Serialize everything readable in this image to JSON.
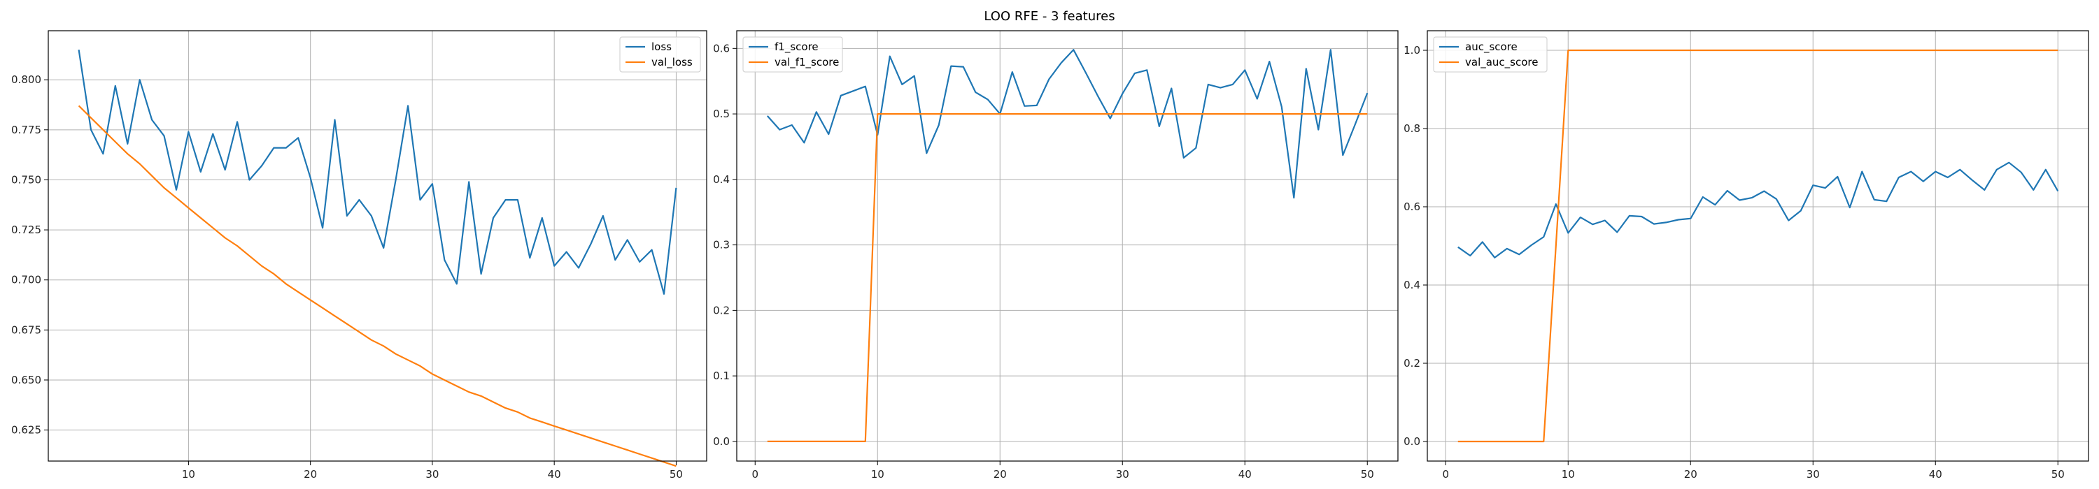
{
  "figure": {
    "title": "LOO RFE - 3 features"
  },
  "colors": {
    "series_blue": "#1f77b4",
    "series_orange": "#ff7f0e",
    "grid": "#b0b0b0",
    "axes": "#000000"
  },
  "chart_data": [
    {
      "type": "line",
      "title": "",
      "xlabel": "",
      "ylabel": "",
      "grid": true,
      "legend": "top-right",
      "xlim": [
        -1.5,
        52.5
      ],
      "ylim": [
        0.6095,
        0.8245
      ],
      "xticks": [
        10,
        20,
        30,
        40,
        50
      ],
      "yticks": [
        0.625,
        0.65,
        0.675,
        0.7,
        0.725,
        0.75,
        0.775,
        0.8
      ],
      "ytick_decimals": 3,
      "x": [
        1,
        2,
        3,
        4,
        5,
        6,
        7,
        8,
        9,
        10,
        11,
        12,
        13,
        14,
        15,
        16,
        17,
        18,
        19,
        20,
        21,
        22,
        23,
        24,
        25,
        26,
        27,
        28,
        29,
        30,
        31,
        32,
        33,
        34,
        35,
        36,
        37,
        38,
        39,
        40,
        41,
        42,
        43,
        44,
        45,
        46,
        47,
        48,
        49,
        50
      ],
      "series": [
        {
          "name": "loss",
          "color": "#1f77b4",
          "values": [
            0.815,
            0.775,
            0.763,
            0.797,
            0.768,
            0.8,
            0.78,
            0.772,
            0.745,
            0.774,
            0.754,
            0.773,
            0.755,
            0.779,
            0.75,
            0.757,
            0.766,
            0.766,
            0.771,
            0.751,
            0.726,
            0.78,
            0.732,
            0.74,
            0.732,
            0.716,
            0.75,
            0.787,
            0.74,
            0.748,
            0.71,
            0.698,
            0.749,
            0.703,
            0.731,
            0.74,
            0.74,
            0.711,
            0.731,
            0.707,
            0.714,
            0.706,
            0.718,
            0.732,
            0.71,
            0.72,
            0.709,
            0.715,
            0.693,
            0.746
          ]
        },
        {
          "name": "val_loss",
          "color": "#ff7f0e",
          "values": [
            0.787,
            0.781,
            0.775,
            0.769,
            0.763,
            0.758,
            0.752,
            0.746,
            0.741,
            0.736,
            0.731,
            0.726,
            0.721,
            0.717,
            0.712,
            0.707,
            0.703,
            0.698,
            0.694,
            0.69,
            0.686,
            0.682,
            0.678,
            0.674,
            0.67,
            0.667,
            0.663,
            0.66,
            0.657,
            0.653,
            0.65,
            0.647,
            0.644,
            0.642,
            0.639,
            0.636,
            0.634,
            0.631,
            0.629,
            0.627,
            0.625,
            0.623,
            0.621,
            0.619,
            0.617,
            0.615,
            0.613,
            0.611,
            0.609,
            0.607
          ]
        }
      ]
    },
    {
      "type": "line",
      "title": "",
      "xlabel": "",
      "ylabel": "",
      "grid": true,
      "legend": "top-left",
      "xlim": [
        -1.5,
        52.5
      ],
      "ylim": [
        -0.03,
        0.627
      ],
      "xticks": [
        0,
        10,
        20,
        30,
        40,
        50
      ],
      "yticks": [
        0.0,
        0.1,
        0.2,
        0.3,
        0.4,
        0.5,
        0.6
      ],
      "ytick_decimals": 1,
      "x": [
        1,
        2,
        3,
        4,
        5,
        6,
        7,
        8,
        9,
        10,
        11,
        12,
        13,
        14,
        15,
        16,
        17,
        18,
        19,
        20,
        21,
        22,
        23,
        24,
        25,
        26,
        27,
        28,
        29,
        30,
        31,
        32,
        33,
        34,
        35,
        36,
        37,
        38,
        39,
        40,
        41,
        42,
        43,
        44,
        45,
        46,
        47,
        48,
        49,
        50
      ],
      "series": [
        {
          "name": "f1_score",
          "color": "#1f77b4",
          "values": [
            0.497,
            0.476,
            0.483,
            0.456,
            0.503,
            0.469,
            0.528,
            0.535,
            0.542,
            0.468,
            0.588,
            0.545,
            0.558,
            0.44,
            0.483,
            0.573,
            0.572,
            0.533,
            0.522,
            0.5,
            0.564,
            0.512,
            0.513,
            0.553,
            0.578,
            0.598,
            0.563,
            0.527,
            0.493,
            0.531,
            0.562,
            0.567,
            0.481,
            0.539,
            0.433,
            0.448,
            0.545,
            0.54,
            0.545,
            0.567,
            0.523,
            0.58,
            0.511,
            0.372,
            0.569,
            0.476,
            0.598,
            0.437,
            0.484,
            0.532
          ]
        },
        {
          "name": "val_f1_score",
          "color": "#ff7f0e",
          "values": [
            0,
            0,
            0,
            0,
            0,
            0,
            0,
            0,
            0,
            0.5,
            0.5,
            0.5,
            0.5,
            0.5,
            0.5,
            0.5,
            0.5,
            0.5,
            0.5,
            0.5,
            0.5,
            0.5,
            0.5,
            0.5,
            0.5,
            0.5,
            0.5,
            0.5,
            0.5,
            0.5,
            0.5,
            0.5,
            0.5,
            0.5,
            0.5,
            0.5,
            0.5,
            0.5,
            0.5,
            0.5,
            0.5,
            0.5,
            0.5,
            0.5,
            0.5,
            0.5,
            0.5,
            0.5,
            0.5,
            0.5
          ]
        }
      ]
    },
    {
      "type": "line",
      "title": "",
      "xlabel": "",
      "ylabel": "",
      "grid": true,
      "legend": "top-left",
      "xlim": [
        -1.5,
        52.5
      ],
      "ylim": [
        -0.05,
        1.05
      ],
      "xticks": [
        0,
        10,
        20,
        30,
        40,
        50
      ],
      "yticks": [
        0.0,
        0.2,
        0.4,
        0.6,
        0.8,
        1.0
      ],
      "ytick_decimals": 1,
      "x": [
        1,
        2,
        3,
        4,
        5,
        6,
        7,
        8,
        9,
        10,
        11,
        12,
        13,
        14,
        15,
        16,
        17,
        18,
        19,
        20,
        21,
        22,
        23,
        24,
        25,
        26,
        27,
        28,
        29,
        30,
        31,
        32,
        33,
        34,
        35,
        36,
        37,
        38,
        39,
        40,
        41,
        42,
        43,
        44,
        45,
        46,
        47,
        48,
        49,
        50
      ],
      "series": [
        {
          "name": "auc_score",
          "color": "#1f77b4",
          "values": [
            0.497,
            0.475,
            0.51,
            0.47,
            0.493,
            0.478,
            0.502,
            0.523,
            0.607,
            0.533,
            0.573,
            0.555,
            0.565,
            0.535,
            0.577,
            0.575,
            0.556,
            0.56,
            0.567,
            0.57,
            0.625,
            0.605,
            0.641,
            0.617,
            0.623,
            0.64,
            0.62,
            0.565,
            0.59,
            0.655,
            0.648,
            0.677,
            0.598,
            0.69,
            0.618,
            0.614,
            0.675,
            0.69,
            0.665,
            0.69,
            0.675,
            0.695,
            0.668,
            0.643,
            0.695,
            0.713,
            0.688,
            0.643,
            0.695,
            0.64
          ]
        },
        {
          "name": "val_auc_score",
          "color": "#ff7f0e",
          "values": [
            0,
            0,
            0,
            0,
            0,
            0,
            0,
            0,
            0.5,
            1,
            1,
            1,
            1,
            1,
            1,
            1,
            1,
            1,
            1,
            1,
            1,
            1,
            1,
            1,
            1,
            1,
            1,
            1,
            1,
            1,
            1,
            1,
            1,
            1,
            1,
            1,
            1,
            1,
            1,
            1,
            1,
            1,
            1,
            1,
            1,
            1,
            1,
            1,
            1,
            1
          ]
        }
      ]
    }
  ]
}
